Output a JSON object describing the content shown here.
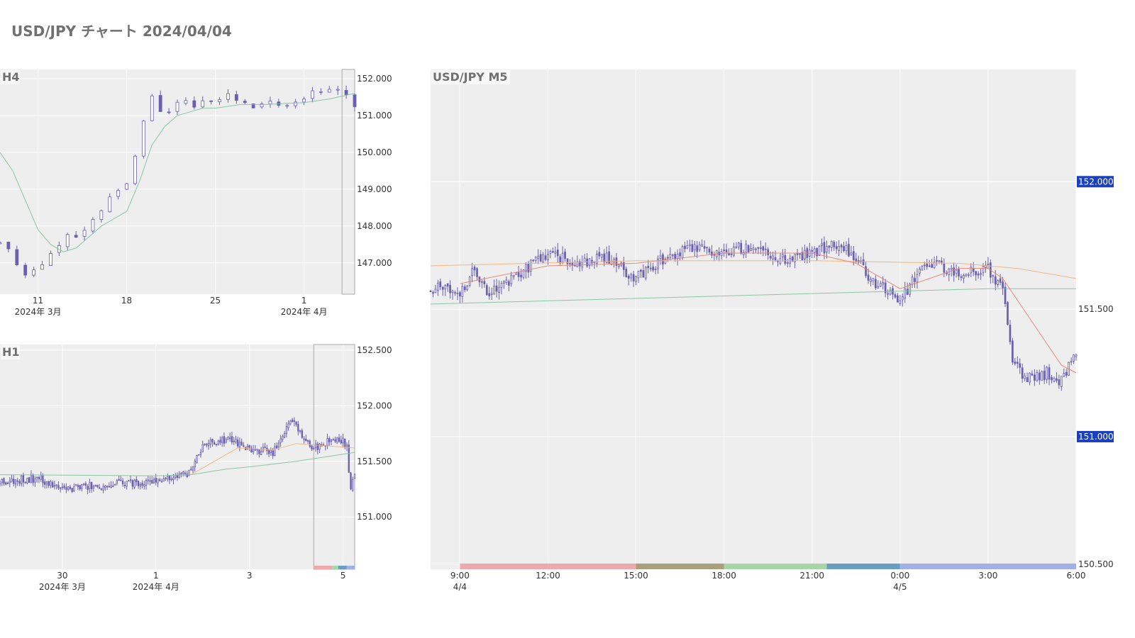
{
  "page": {
    "title": "USD/JPY チャート 2024/04/04"
  },
  "colors": {
    "plot_bg": "#eeeeee",
    "grid": "#ffffff",
    "candle": "#6a5fb0",
    "ma_short": "#e8806f",
    "ma_mid": "#f0b27a",
    "ma_long": "#7fc29b",
    "badge": "#1a3fbf",
    "highlight": "#aaaaaa",
    "session_colors": [
      "#eea9ae",
      "#a9a07b",
      "#a8d5a8",
      "#6a9dc4",
      "#a3b0e8"
    ]
  },
  "chart_data": [
    {
      "id": "h4",
      "type": "candlestick",
      "title": "H4",
      "ylim": [
        146.15,
        152.25
      ],
      "yticks": [
        147,
        148,
        149,
        150,
        151,
        152
      ],
      "ytick_labels": [
        "147.000",
        "148.000",
        "149.000",
        "150.000",
        "151.000",
        "152.000"
      ],
      "xlim": [
        "2024-03-08",
        "2024-04-05"
      ],
      "xticks": [
        {
          "x": "2024-03-11",
          "label": "11",
          "sublabel": "2024年 3月"
        },
        {
          "x": "2024-03-18",
          "label": "18",
          "sublabel": ""
        },
        {
          "x": "2024-03-25",
          "label": "25",
          "sublabel": ""
        },
        {
          "x": "2024-04-01",
          "label": "1",
          "sublabel": "2024年 4月"
        }
      ],
      "highlight_range": [
        "2024-04-04",
        "2024-04-05"
      ],
      "key_closes": [
        {
          "x": "2024-03-08",
          "close": 147.6
        },
        {
          "x": "2024-03-09",
          "close": 147.2
        },
        {
          "x": "2024-03-10",
          "close": 146.7
        },
        {
          "x": "2024-03-11",
          "close": 146.9
        },
        {
          "x": "2024-03-12",
          "close": 147.3
        },
        {
          "x": "2024-03-13",
          "close": 147.6
        },
        {
          "x": "2024-03-14",
          "close": 147.8
        },
        {
          "x": "2024-03-15",
          "close": 148.0
        },
        {
          "x": "2024-03-16",
          "close": 148.4
        },
        {
          "x": "2024-03-17",
          "close": 149.0
        },
        {
          "x": "2024-03-18",
          "close": 149.2
        },
        {
          "x": "2024-03-19",
          "close": 150.4
        },
        {
          "x": "2024-03-20",
          "close": 151.6
        },
        {
          "x": "2024-03-21",
          "close": 151.0
        },
        {
          "x": "2024-03-22",
          "close": 151.4
        },
        {
          "x": "2024-03-23",
          "close": 151.3
        },
        {
          "x": "2024-03-24",
          "close": 151.3
        },
        {
          "x": "2024-03-25",
          "close": 151.4
        },
        {
          "x": "2024-03-26",
          "close": 151.6
        },
        {
          "x": "2024-03-27",
          "close": 151.3
        },
        {
          "x": "2024-03-28",
          "close": 151.3
        },
        {
          "x": "2024-03-29",
          "close": 151.3
        },
        {
          "x": "2024-03-30",
          "close": 151.3
        },
        {
          "x": "2024-03-31",
          "close": 151.3
        },
        {
          "x": "2024-04-01",
          "close": 151.5
        },
        {
          "x": "2024-04-02",
          "close": 151.7
        },
        {
          "x": "2024-04-03",
          "close": 151.7
        },
        {
          "x": "2024-04-04",
          "close": 151.6
        },
        {
          "x": "2024-04-05",
          "close": 151.3
        }
      ],
      "ma_long": [
        {
          "x": "2024-03-08",
          "y": 150.0
        },
        {
          "x": "2024-03-09",
          "y": 149.5
        },
        {
          "x": "2024-03-10",
          "y": 148.7
        },
        {
          "x": "2024-03-11",
          "y": 147.9
        },
        {
          "x": "2024-03-12",
          "y": 147.5
        },
        {
          "x": "2024-03-13",
          "y": 147.3
        },
        {
          "x": "2024-03-14",
          "y": 147.4
        },
        {
          "x": "2024-03-15",
          "y": 147.7
        },
        {
          "x": "2024-03-16",
          "y": 148.0
        },
        {
          "x": "2024-03-17",
          "y": 148.2
        },
        {
          "x": "2024-03-18",
          "y": 148.4
        },
        {
          "x": "2024-03-19",
          "y": 149.2
        },
        {
          "x": "2024-03-20",
          "y": 150.2
        },
        {
          "x": "2024-03-21",
          "y": 150.7
        },
        {
          "x": "2024-03-22",
          "y": 151.0
        },
        {
          "x": "2024-03-23",
          "y": 151.1
        },
        {
          "x": "2024-03-24",
          "y": 151.2
        },
        {
          "x": "2024-03-25",
          "y": 151.2
        },
        {
          "x": "2024-03-27",
          "y": 151.3
        },
        {
          "x": "2024-03-29",
          "y": 151.3
        },
        {
          "x": "2024-04-01",
          "y": 151.35
        },
        {
          "x": "2024-04-03",
          "y": 151.45
        },
        {
          "x": "2024-04-05",
          "y": 151.6
        }
      ]
    },
    {
      "id": "h1",
      "type": "candlestick",
      "title": "H1",
      "ylim": [
        150.53,
        152.55
      ],
      "yticks": [
        151.0,
        151.5,
        152.0,
        152.5
      ],
      "ytick_labels": [
        "151.000",
        "151.500",
        "152.000",
        "152.500"
      ],
      "xlim": [
        "2024-03-28 16:00",
        "2024-04-05 06:00"
      ],
      "xticks": [
        {
          "x": "2024-03-30",
          "label": "30",
          "sublabel": "2024年 3月"
        },
        {
          "x": "2024-04-01",
          "label": "1",
          "sublabel": "2024年 4月"
        },
        {
          "x": "2024-04-03",
          "label": "3",
          "sublabel": ""
        },
        {
          "x": "2024-04-05",
          "label": "5",
          "sublabel": ""
        }
      ],
      "highlight_range": [
        "2024-04-04 09:00",
        "2024-04-05 06:00"
      ],
      "key_closes": [
        {
          "x": "2024-03-28 16:00",
          "close": 151.32
        },
        {
          "x": "2024-03-29 12:00",
          "close": 151.35
        },
        {
          "x": "2024-03-30",
          "close": 151.25
        },
        {
          "x": "2024-04-01",
          "close": 151.33
        },
        {
          "x": "2024-04-01 18:00",
          "close": 151.4
        },
        {
          "x": "2024-04-02",
          "close": 151.65
        },
        {
          "x": "2024-04-02 12:00",
          "close": 151.7
        },
        {
          "x": "2024-04-03",
          "close": 151.62
        },
        {
          "x": "2024-04-03 12:00",
          "close": 151.58
        },
        {
          "x": "2024-04-03 22:00",
          "close": 151.87
        },
        {
          "x": "2024-04-04 06:00",
          "close": 151.65
        },
        {
          "x": "2024-04-04 12:00",
          "close": 151.62
        },
        {
          "x": "2024-04-04 18:00",
          "close": 151.7
        },
        {
          "x": "2024-04-05 00:00",
          "close": 151.68
        },
        {
          "x": "2024-04-05 02:00",
          "close": 151.62
        },
        {
          "x": "2024-04-05 04:00",
          "close": 151.25
        },
        {
          "x": "2024-04-05 06:00",
          "close": 151.35
        }
      ],
      "ma_long": [
        {
          "x": "2024-03-28 16:00",
          "y": 151.38
        },
        {
          "x": "2024-04-01",
          "y": 151.37
        },
        {
          "x": "2024-04-01 18:00",
          "y": 151.38
        },
        {
          "x": "2024-04-02 12:00",
          "y": 151.43
        },
        {
          "x": "2024-04-03",
          "y": 151.45
        },
        {
          "x": "2024-04-04",
          "y": 151.5
        },
        {
          "x": "2024-04-05 06:00",
          "y": 151.58
        }
      ],
      "ma_mid": [
        {
          "x": "2024-04-01 18:00",
          "y": 151.38
        },
        {
          "x": "2024-04-02 06:00",
          "y": 151.5
        },
        {
          "x": "2024-04-02 18:00",
          "y": 151.62
        },
        {
          "x": "2024-04-03 12:00",
          "y": 151.6
        },
        {
          "x": "2024-04-04",
          "y": 151.66
        },
        {
          "x": "2024-04-05 06:00",
          "y": 151.62
        }
      ]
    },
    {
      "id": "m5",
      "type": "candlestick",
      "title": "USD/JPY M5",
      "ylim": [
        150.48,
        152.44
      ],
      "yticks": [
        150.5,
        151.0,
        151.5,
        152.0
      ],
      "ytick_labels": [
        "150.500",
        "151.000",
        "151.500",
        "152.000"
      ],
      "badges": [
        {
          "y": 152.0,
          "label": "152.000"
        },
        {
          "y": 151.0,
          "label": "151.000"
        }
      ],
      "xlim": [
        "2024-04-04 08:00",
        "2024-04-05 06:00"
      ],
      "xticks": [
        {
          "x": "2024-04-04 09:00",
          "label": "9:00",
          "sublabel": "4/4"
        },
        {
          "x": "2024-04-04 12:00",
          "label": "12:00",
          "sublabel": ""
        },
        {
          "x": "2024-04-04 15:00",
          "label": "15:00",
          "sublabel": ""
        },
        {
          "x": "2024-04-04 18:00",
          "label": "18:00",
          "sublabel": ""
        },
        {
          "x": "2024-04-04 21:00",
          "label": "21:00",
          "sublabel": ""
        },
        {
          "x": "2024-04-05 00:00",
          "label": "0:00",
          "sublabel": "4/5"
        },
        {
          "x": "2024-04-05 03:00",
          "label": "3:00",
          "sublabel": ""
        },
        {
          "x": "2024-04-05 06:00",
          "label": "6:00",
          "sublabel": ""
        }
      ],
      "sessions": [
        {
          "start": "2024-04-04 09:00",
          "end": "2024-04-04 15:00"
        },
        {
          "start": "2024-04-04 15:00",
          "end": "2024-04-04 18:00"
        },
        {
          "start": "2024-04-04 18:00",
          "end": "2024-04-04 21:30"
        },
        {
          "start": "2024-04-04 21:30",
          "end": "2024-04-05 00:00"
        },
        {
          "start": "2024-04-05 00:00",
          "end": "2024-04-05 06:00"
        }
      ],
      "key_closes": [
        {
          "x": "2024-04-04 08:00",
          "close": 151.58
        },
        {
          "x": "2024-04-04 08:30",
          "close": 151.6
        },
        {
          "x": "2024-04-04 09:00",
          "close": 151.56
        },
        {
          "x": "2024-04-04 09:30",
          "close": 151.66
        },
        {
          "x": "2024-04-04 10:00",
          "close": 151.56
        },
        {
          "x": "2024-04-04 11:00",
          "close": 151.64
        },
        {
          "x": "2024-04-04 12:00",
          "close": 151.72
        },
        {
          "x": "2024-04-04 13:00",
          "close": 151.68
        },
        {
          "x": "2024-04-04 14:00",
          "close": 151.7
        },
        {
          "x": "2024-04-04 15:00",
          "close": 151.62
        },
        {
          "x": "2024-04-04 16:00",
          "close": 151.7
        },
        {
          "x": "2024-04-04 17:00",
          "close": 151.74
        },
        {
          "x": "2024-04-04 18:00",
          "close": 151.73
        },
        {
          "x": "2024-04-04 19:00",
          "close": 151.75
        },
        {
          "x": "2024-04-04 20:00",
          "close": 151.7
        },
        {
          "x": "2024-04-04 21:00",
          "close": 151.72
        },
        {
          "x": "2024-04-04 22:00",
          "close": 151.76
        },
        {
          "x": "2024-04-04 23:00",
          "close": 151.62
        },
        {
          "x": "2024-04-05 00:00",
          "close": 151.54
        },
        {
          "x": "2024-04-05 00:30",
          "close": 151.62
        },
        {
          "x": "2024-04-05 01:00",
          "close": 151.68
        },
        {
          "x": "2024-04-05 02:00",
          "close": 151.64
        },
        {
          "x": "2024-04-05 03:00",
          "close": 151.66
        },
        {
          "x": "2024-04-05 03:30",
          "close": 151.58
        },
        {
          "x": "2024-04-05 03:50",
          "close": 151.28
        },
        {
          "x": "2024-04-05 04:30",
          "close": 151.22
        },
        {
          "x": "2024-04-05 05:00",
          "close": 151.25
        },
        {
          "x": "2024-04-05 05:30",
          "close": 151.22
        },
        {
          "x": "2024-04-05 06:00",
          "close": 151.32
        }
      ],
      "ma_long": [
        {
          "x": "2024-04-04 08:00",
          "y": 151.52
        },
        {
          "x": "2024-04-05 03:00",
          "y": 151.58
        },
        {
          "x": "2024-04-05 06:00",
          "y": 151.58
        }
      ],
      "ma_mid": [
        {
          "x": "2024-04-04 08:00",
          "y": 151.67
        },
        {
          "x": "2024-04-04 15:00",
          "y": 151.69
        },
        {
          "x": "2024-04-04 21:00",
          "y": 151.69
        },
        {
          "x": "2024-04-05 02:00",
          "y": 151.68
        },
        {
          "x": "2024-04-05 04:00",
          "y": 151.66
        },
        {
          "x": "2024-04-05 06:00",
          "y": 151.62
        }
      ],
      "ma_short": [
        {
          "x": "2024-04-04 09:00",
          "y": 151.6
        },
        {
          "x": "2024-04-04 12:00",
          "y": 151.67
        },
        {
          "x": "2024-04-04 15:00",
          "y": 151.68
        },
        {
          "x": "2024-04-04 18:00",
          "y": 151.72
        },
        {
          "x": "2024-04-04 21:00",
          "y": 151.72
        },
        {
          "x": "2024-04-04 22:30",
          "y": 151.68
        },
        {
          "x": "2024-04-05 00:00",
          "y": 151.58
        },
        {
          "x": "2024-04-05 01:00",
          "y": 151.62
        },
        {
          "x": "2024-04-05 02:00",
          "y": 151.66
        },
        {
          "x": "2024-04-05 03:00",
          "y": 151.66
        },
        {
          "x": "2024-04-05 03:30",
          "y": 151.62
        },
        {
          "x": "2024-04-05 04:30",
          "y": 151.45
        },
        {
          "x": "2024-04-05 05:30",
          "y": 151.28
        },
        {
          "x": "2024-04-05 06:00",
          "y": 151.25
        }
      ]
    }
  ]
}
